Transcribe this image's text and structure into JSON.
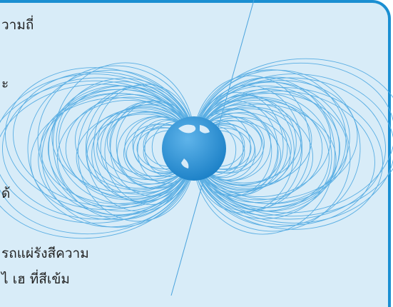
{
  "text_lines": [
    "วามถี่",
    "ะ",
    "ด้",
    "รถแผ่รังสีความ",
    "ไ เฮ ที่สีเข้ม"
  ]
}
